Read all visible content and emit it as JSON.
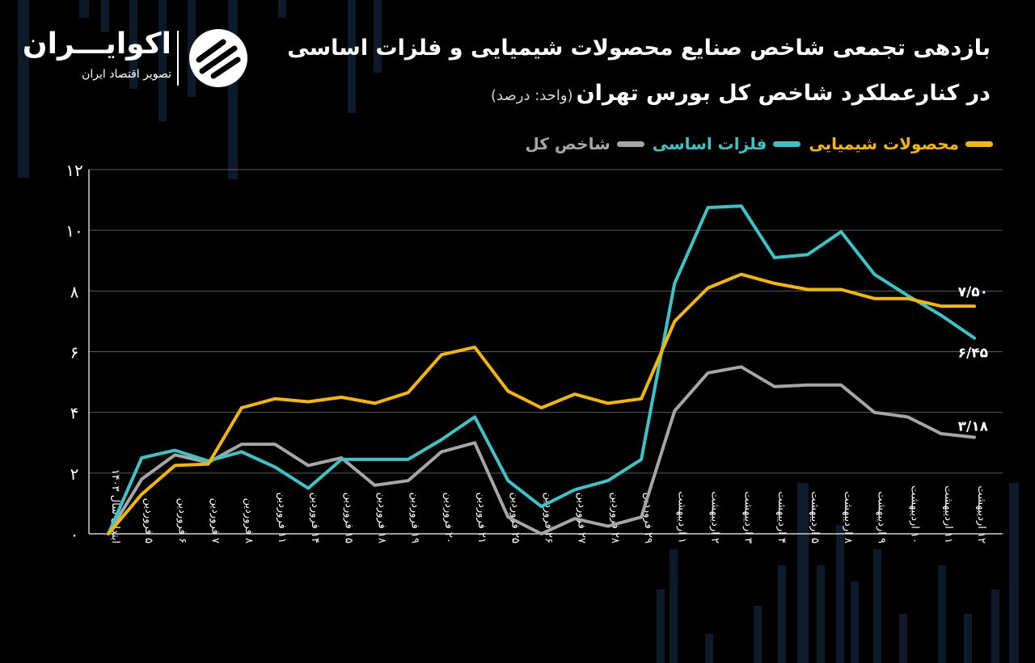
{
  "header": {
    "title": "بازدهی تجمعی شاخص صنایع محصولات شیمیایی و فلزات اساسی",
    "subtitle": "در کنارعملکرد شاخص کل بورس تهران",
    "unit": "(واحد: درصد)"
  },
  "brand": {
    "name": "اکوایـــران",
    "tagline": "تصویر اقتصاد ایران",
    "icon": "ekoiran-logo-icon"
  },
  "colors": {
    "background": "#000000",
    "chemical": "#f5b800",
    "metals": "#3cc5c8",
    "overall": "#a6a6a6",
    "grid": "#5a5a5a"
  },
  "chart_data": {
    "type": "line",
    "title": "بازدهی تجمعی شاخص صنایع محصولات شیمیایی و فلزات اساسی",
    "xlabel": "",
    "ylabel": "",
    "ylim": [
      0,
      12
    ],
    "yticks": [
      "۰",
      "۲",
      "۴",
      "۶",
      "۸",
      "۱۰",
      "۱۲"
    ],
    "grid": true,
    "legend_position": "top-right",
    "categories": [
      "ابتدای سال ۱۴۰۳",
      "۵ فروردین",
      "۶ فروردین",
      "۷ فروردین",
      "۸ فروردین",
      "۱۱ فروردین",
      "۱۴ فروردین",
      "۱۵ فروردین",
      "۱۸ فروردین",
      "۱۹ فروردین",
      "۲۰ فروردین",
      "۲۱ فروردین",
      "۲۵ فروردین",
      "۲۶ فروردین",
      "۲۷ فروردین",
      "۲۸ فروردین",
      "۲۹ فروردین",
      "۱ اردیبهشت",
      "۲ اردیبهشت",
      "۳ اردیبهشت",
      "۴ اردیبهشت",
      "۵ اردیبهشت",
      "۸ اردیبهشت",
      "۹ اردیبهشت",
      "۱۰ اردیبهشت",
      "۱۱ اردیبهشت",
      "۱۲ اردیبهشت"
    ],
    "series": [
      {
        "name": "محصولات شیمیایی",
        "color": "#f5b800",
        "values": [
          0,
          1.3,
          2.25,
          2.3,
          4.15,
          4.45,
          4.35,
          4.5,
          4.3,
          4.65,
          5.9,
          6.15,
          4.7,
          4.15,
          4.6,
          4.3,
          4.45,
          7.0,
          8.1,
          8.55,
          8.25,
          8.05,
          8.05,
          7.75,
          7.75,
          7.5,
          7.5
        ],
        "end_label": "۷/۵۰"
      },
      {
        "name": "فلزات اساسی",
        "color": "#3cc5c8",
        "values": [
          0,
          2.5,
          2.75,
          2.4,
          2.7,
          2.2,
          1.5,
          2.45,
          2.45,
          2.45,
          3.1,
          3.85,
          1.75,
          0.9,
          1.45,
          1.75,
          2.45,
          8.25,
          10.75,
          10.8,
          9.1,
          9.2,
          9.95,
          8.55,
          7.85,
          7.2,
          6.45
        ],
        "end_label": "۶/۴۵"
      },
      {
        "name": "شاخص کل",
        "color": "#a6a6a6",
        "values": [
          0,
          1.8,
          2.6,
          2.35,
          2.95,
          2.95,
          2.25,
          2.5,
          1.6,
          1.75,
          2.7,
          3.0,
          0.55,
          0.0,
          0.5,
          0.25,
          0.55,
          4.05,
          5.3,
          5.5,
          4.85,
          4.9,
          4.9,
          4.0,
          3.85,
          3.3,
          3.18
        ],
        "end_label": "۳/۱۸"
      }
    ]
  }
}
